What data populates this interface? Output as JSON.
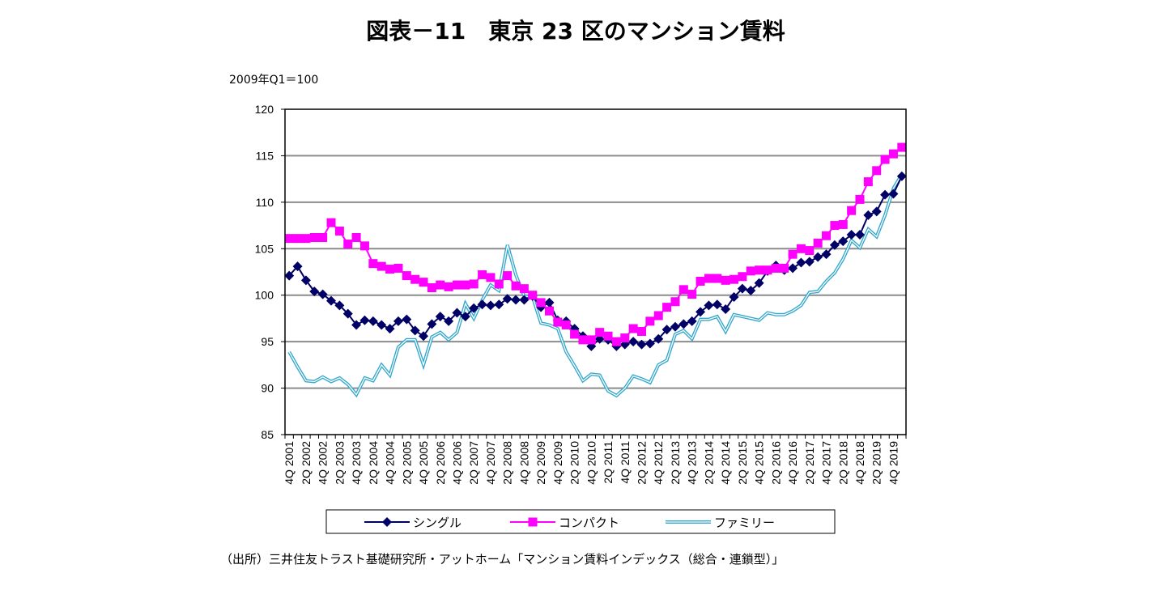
{
  "chart_data": {
    "type": "line",
    "title": "図表－11　東京 23 区のマンション賃料",
    "ylabel": "2009年Q1＝100",
    "source": "（出所）三井住友トラスト基礎研究所・アットホーム「マンション賃料インデックス（総合・連鎖型）」",
    "ylim": [
      85,
      120
    ],
    "yticks": [
      85,
      90,
      95,
      100,
      105,
      110,
      115,
      120
    ],
    "grid": true,
    "legend_position": "bottom",
    "tick_labels": [
      "4Q 2001",
      "2Q 2002",
      "4Q 2002",
      "2Q 2003",
      "4Q 2003",
      "2Q 2004",
      "4Q 2004",
      "2Q 2005",
      "4Q 2005",
      "2Q 2006",
      "4Q 2006",
      "2Q 2007",
      "4Q 2007",
      "2Q 2008",
      "4Q 2008",
      "2Q 2009",
      "4Q 2009",
      "2Q 2010",
      "4Q 2010",
      "2Q 2011",
      "4Q 2011",
      "2Q 2012",
      "4Q 2012",
      "2Q 2013",
      "4Q 2013",
      "2Q 2014",
      "4Q 2014",
      "2Q 2015",
      "4Q 2015",
      "2Q 2016",
      "4Q 2016",
      "2Q 2017",
      "4Q 2017",
      "2Q 2018",
      "4Q 2018",
      "2Q 2019",
      "4Q 2019"
    ],
    "categories": [
      "4Q 2001",
      "1Q 2002",
      "2Q 2002",
      "3Q 2002",
      "4Q 2002",
      "1Q 2003",
      "2Q 2003",
      "3Q 2003",
      "4Q 2003",
      "1Q 2004",
      "2Q 2004",
      "3Q 2004",
      "4Q 2004",
      "1Q 2005",
      "2Q 2005",
      "3Q 2005",
      "4Q 2005",
      "1Q 2006",
      "2Q 2006",
      "3Q 2006",
      "4Q 2006",
      "1Q 2007",
      "2Q 2007",
      "3Q 2007",
      "4Q 2007",
      "1Q 2008",
      "2Q 2008",
      "3Q 2008",
      "4Q 2008",
      "1Q 2009",
      "2Q 2009",
      "3Q 2009",
      "4Q 2009",
      "1Q 2010",
      "2Q 2010",
      "3Q 2010",
      "4Q 2010",
      "1Q 2011",
      "2Q 2011",
      "3Q 2011",
      "4Q 2011",
      "1Q 2012",
      "2Q 2012",
      "3Q 2012",
      "4Q 2012",
      "1Q 2013",
      "2Q 2013",
      "3Q 2013",
      "4Q 2013",
      "1Q 2014",
      "2Q 2014",
      "3Q 2014",
      "4Q 2014",
      "1Q 2015",
      "2Q 2015",
      "3Q 2015",
      "4Q 2015",
      "1Q 2016",
      "2Q 2016",
      "3Q 2016",
      "4Q 2016",
      "1Q 2017",
      "2Q 2017",
      "3Q 2017",
      "4Q 2017",
      "1Q 2018",
      "2Q 2018",
      "3Q 2018",
      "4Q 2018",
      "1Q 2019",
      "2Q 2019",
      "3Q 2019",
      "4Q 2019",
      "1Q 2020"
    ],
    "series": [
      {
        "name": "シングル",
        "color": "#000066",
        "marker": "diamond",
        "values": [
          102.1,
          103.1,
          101.6,
          100.4,
          100.1,
          99.4,
          98.9,
          98.0,
          96.8,
          97.3,
          97.2,
          96.8,
          96.4,
          97.2,
          97.4,
          96.2,
          95.6,
          96.9,
          97.7,
          97.2,
          98.1,
          97.7,
          98.6,
          99.0,
          98.9,
          99.0,
          99.6,
          99.5,
          99.5,
          99.9,
          98.7,
          99.2,
          97.3,
          97.2,
          96.4,
          95.6,
          94.5,
          95.3,
          95.2,
          94.5,
          94.7,
          95.0,
          94.7,
          94.8,
          95.3,
          96.3,
          96.6,
          96.9,
          97.2,
          98.2,
          98.9,
          99.0,
          98.5,
          99.8,
          100.7,
          100.5,
          101.3,
          102.6,
          103.2,
          102.7,
          102.9,
          103.5,
          103.6,
          104.1,
          104.4,
          105.4,
          105.8,
          106.5,
          106.5,
          108.6,
          109.0,
          110.8,
          110.9,
          112.8
        ]
      },
      {
        "name": "コンパクト",
        "color": "#FF00FF",
        "marker": "square",
        "values": [
          106.1,
          106.1,
          106.1,
          106.2,
          106.2,
          107.8,
          106.9,
          105.5,
          106.2,
          105.3,
          103.4,
          103.1,
          102.8,
          102.9,
          102.1,
          101.7,
          101.4,
          100.8,
          101.1,
          100.9,
          101.1,
          101.1,
          101.2,
          102.2,
          101.9,
          101.2,
          102.1,
          101.0,
          100.7,
          100.0,
          99.2,
          98.3,
          97.1,
          96.8,
          95.8,
          95.2,
          95.2,
          96.0,
          95.6,
          95.0,
          95.4,
          96.4,
          96.1,
          97.2,
          97.8,
          98.7,
          99.3,
          100.6,
          100.1,
          101.5,
          101.8,
          101.8,
          101.6,
          101.7,
          102.0,
          102.6,
          102.7,
          102.7,
          102.9,
          102.9,
          104.4,
          105.0,
          104.8,
          105.6,
          106.4,
          107.5,
          107.6,
          109.1,
          110.3,
          112.2,
          113.4,
          114.6,
          115.2,
          115.9
        ]
      },
      {
        "name": "ファミリー",
        "color": "#33A8CC",
        "marker": "none",
        "values": [
          93.9,
          92.3,
          90.8,
          90.7,
          91.2,
          90.7,
          91.1,
          90.4,
          89.3,
          91.1,
          90.8,
          92.5,
          91.4,
          94.4,
          95.2,
          95.2,
          92.5,
          95.5,
          96.0,
          95.2,
          96.0,
          99.1,
          97.5,
          99.5,
          101.1,
          100.5,
          105.4,
          102.2,
          99.9,
          99.8,
          97.0,
          96.8,
          96.4,
          93.9,
          92.4,
          90.8,
          91.5,
          91.4,
          89.7,
          89.2,
          90.0,
          91.3,
          91.0,
          90.6,
          92.5,
          93.0,
          95.8,
          96.2,
          95.3,
          97.4,
          97.4,
          97.7,
          96.1,
          97.9,
          97.7,
          97.5,
          97.3,
          98.1,
          97.9,
          97.9,
          98.3,
          98.9,
          100.3,
          100.4,
          101.5,
          102.4,
          103.9,
          105.9,
          105.1,
          107.1,
          106.3,
          108.6,
          111.5,
          113.0
        ]
      }
    ]
  }
}
